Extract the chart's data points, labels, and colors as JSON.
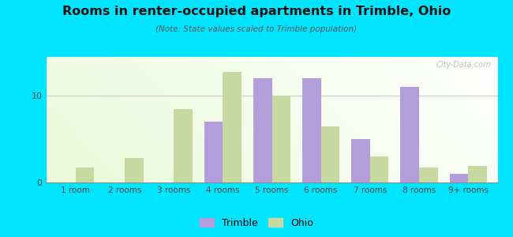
{
  "title": "Rooms in renter-occupied apartments in Trimble, Ohio",
  "subtitle": "(Note: State values scaled to Trimble population)",
  "categories": [
    "1 room",
    "2 rooms",
    "3 rooms",
    "4 rooms",
    "5 rooms",
    "6 rooms",
    "7 rooms",
    "8 rooms",
    "9+ rooms"
  ],
  "trimble_values": [
    0,
    0,
    0,
    7,
    12,
    12,
    5,
    11,
    1
  ],
  "ohio_values": [
    1.7,
    2.8,
    8.5,
    12.8,
    10.0,
    6.5,
    3.0,
    1.7,
    1.9
  ],
  "trimble_color": "#b39ddb",
  "ohio_color": "#c5d9a0",
  "bg_outer": "#00e5ff",
  "ylim": [
    0,
    14.5
  ],
  "yticks": [
    0,
    10
  ],
  "bar_width": 0.38,
  "watermark": "City-Data.com"
}
